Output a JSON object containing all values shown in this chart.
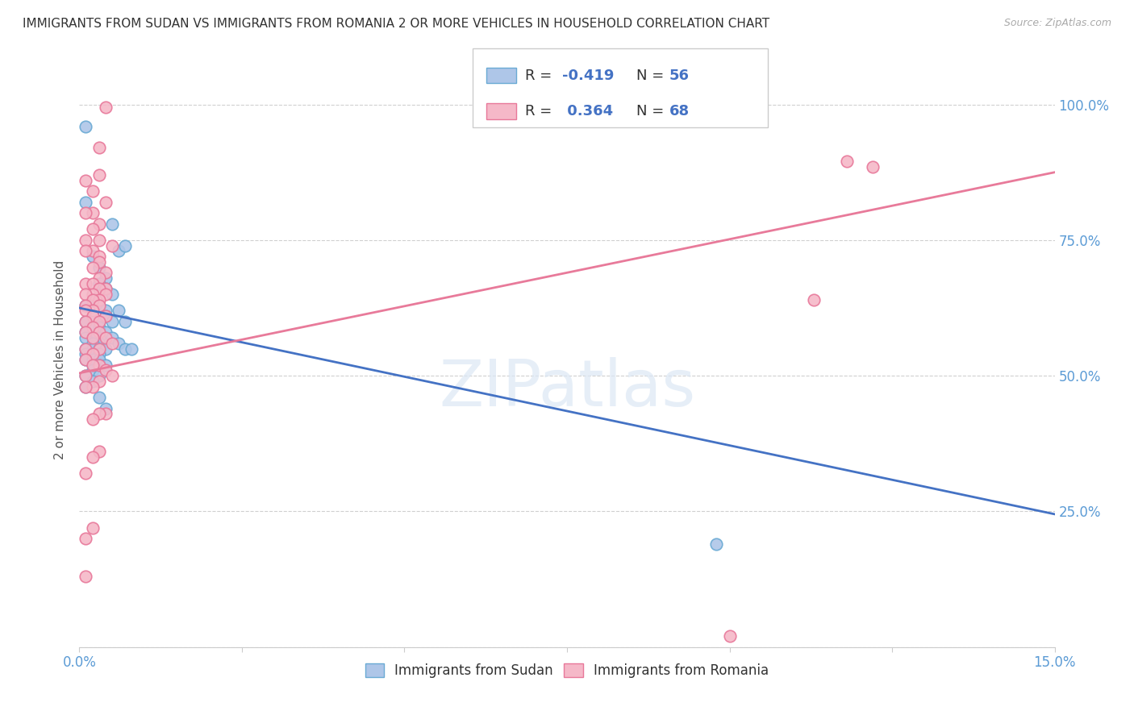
{
  "title": "IMMIGRANTS FROM SUDAN VS IMMIGRANTS FROM ROMANIA 2 OR MORE VEHICLES IN HOUSEHOLD CORRELATION CHART",
  "source": "Source: ZipAtlas.com",
  "ylabel": "2 or more Vehicles in Household",
  "watermark": "ZIPatlas",
  "sudan_color": "#aec6e8",
  "sudan_edge_color": "#6aaad4",
  "romania_color": "#f5b8c8",
  "romania_edge_color": "#e8789a",
  "sudan_line_color": "#4472c4",
  "romania_line_color": "#e87a9a",
  "sudan_R": -0.419,
  "sudan_N": 56,
  "romania_R": 0.364,
  "romania_N": 68,
  "sudan_line_y0": 0.625,
  "sudan_line_y1": 0.245,
  "romania_line_y0": 0.505,
  "romania_line_y1": 0.875,
  "sudan_points": [
    [
      0.001,
      0.96
    ],
    [
      0.001,
      0.82
    ],
    [
      0.005,
      0.78
    ],
    [
      0.006,
      0.73
    ],
    [
      0.002,
      0.72
    ],
    [
      0.007,
      0.74
    ],
    [
      0.003,
      0.7
    ],
    [
      0.004,
      0.68
    ],
    [
      0.003,
      0.67
    ],
    [
      0.004,
      0.66
    ],
    [
      0.005,
      0.65
    ],
    [
      0.002,
      0.64
    ],
    [
      0.001,
      0.63
    ],
    [
      0.003,
      0.63
    ],
    [
      0.004,
      0.62
    ],
    [
      0.006,
      0.62
    ],
    [
      0.002,
      0.61
    ],
    [
      0.004,
      0.61
    ],
    [
      0.005,
      0.6
    ],
    [
      0.003,
      0.6
    ],
    [
      0.001,
      0.6
    ],
    [
      0.007,
      0.6
    ],
    [
      0.002,
      0.59
    ],
    [
      0.003,
      0.59
    ],
    [
      0.001,
      0.58
    ],
    [
      0.004,
      0.58
    ],
    [
      0.003,
      0.57
    ],
    [
      0.005,
      0.57
    ],
    [
      0.002,
      0.57
    ],
    [
      0.001,
      0.57
    ],
    [
      0.003,
      0.56
    ],
    [
      0.002,
      0.56
    ],
    [
      0.006,
      0.56
    ],
    [
      0.001,
      0.55
    ],
    [
      0.002,
      0.55
    ],
    [
      0.003,
      0.55
    ],
    [
      0.004,
      0.55
    ],
    [
      0.007,
      0.55
    ],
    [
      0.008,
      0.55
    ],
    [
      0.001,
      0.54
    ],
    [
      0.002,
      0.54
    ],
    [
      0.003,
      0.54
    ],
    [
      0.001,
      0.53
    ],
    [
      0.002,
      0.53
    ],
    [
      0.003,
      0.53
    ],
    [
      0.002,
      0.52
    ],
    [
      0.003,
      0.52
    ],
    [
      0.004,
      0.52
    ],
    [
      0.002,
      0.51
    ],
    [
      0.001,
      0.5
    ],
    [
      0.003,
      0.5
    ],
    [
      0.002,
      0.49
    ],
    [
      0.001,
      0.48
    ],
    [
      0.003,
      0.46
    ],
    [
      0.004,
      0.44
    ],
    [
      0.098,
      0.19
    ]
  ],
  "romania_points": [
    [
      0.004,
      0.995
    ],
    [
      0.003,
      0.92
    ],
    [
      0.003,
      0.87
    ],
    [
      0.001,
      0.86
    ],
    [
      0.118,
      0.895
    ],
    [
      0.122,
      0.885
    ],
    [
      0.002,
      0.84
    ],
    [
      0.004,
      0.82
    ],
    [
      0.002,
      0.8
    ],
    [
      0.001,
      0.8
    ],
    [
      0.003,
      0.78
    ],
    [
      0.002,
      0.77
    ],
    [
      0.003,
      0.75
    ],
    [
      0.001,
      0.75
    ],
    [
      0.005,
      0.74
    ],
    [
      0.002,
      0.73
    ],
    [
      0.001,
      0.73
    ],
    [
      0.003,
      0.72
    ],
    [
      0.003,
      0.71
    ],
    [
      0.002,
      0.7
    ],
    [
      0.004,
      0.69
    ],
    [
      0.003,
      0.68
    ],
    [
      0.001,
      0.67
    ],
    [
      0.002,
      0.67
    ],
    [
      0.004,
      0.66
    ],
    [
      0.003,
      0.66
    ],
    [
      0.004,
      0.65
    ],
    [
      0.002,
      0.65
    ],
    [
      0.001,
      0.65
    ],
    [
      0.003,
      0.64
    ],
    [
      0.002,
      0.64
    ],
    [
      0.001,
      0.63
    ],
    [
      0.003,
      0.63
    ],
    [
      0.002,
      0.62
    ],
    [
      0.001,
      0.62
    ],
    [
      0.004,
      0.61
    ],
    [
      0.002,
      0.61
    ],
    [
      0.001,
      0.6
    ],
    [
      0.003,
      0.6
    ],
    [
      0.002,
      0.59
    ],
    [
      0.003,
      0.58
    ],
    [
      0.001,
      0.58
    ],
    [
      0.004,
      0.57
    ],
    [
      0.002,
      0.57
    ],
    [
      0.005,
      0.56
    ],
    [
      0.001,
      0.55
    ],
    [
      0.003,
      0.55
    ],
    [
      0.002,
      0.54
    ],
    [
      0.001,
      0.53
    ],
    [
      0.003,
      0.52
    ],
    [
      0.002,
      0.52
    ],
    [
      0.004,
      0.51
    ],
    [
      0.001,
      0.5
    ],
    [
      0.005,
      0.5
    ],
    [
      0.003,
      0.49
    ],
    [
      0.002,
      0.48
    ],
    [
      0.001,
      0.48
    ],
    [
      0.004,
      0.43
    ],
    [
      0.003,
      0.43
    ],
    [
      0.002,
      0.42
    ],
    [
      0.003,
      0.36
    ],
    [
      0.002,
      0.35
    ],
    [
      0.001,
      0.32
    ],
    [
      0.002,
      0.22
    ],
    [
      0.001,
      0.2
    ],
    [
      0.113,
      0.64
    ],
    [
      0.001,
      0.13
    ],
    [
      0.1,
      0.02
    ]
  ],
  "xmin": 0.0,
  "xmax": 0.15,
  "ymin": 0.0,
  "ymax": 1.06,
  "xticks": [
    0.0,
    0.025,
    0.05,
    0.075,
    0.1,
    0.125,
    0.15
  ],
  "ytick_vals": [
    0.0,
    0.25,
    0.5,
    0.75,
    1.0
  ],
  "ytick_labels_right": [
    "",
    "25.0%",
    "50.0%",
    "75.0%",
    "100.0%"
  ]
}
